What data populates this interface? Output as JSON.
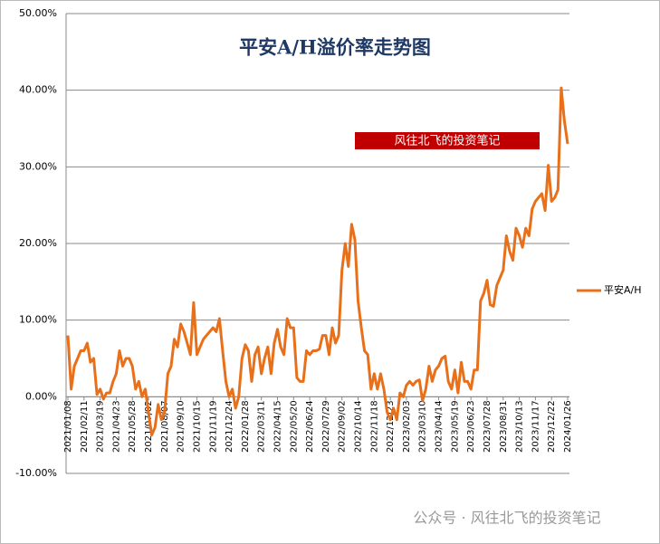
{
  "chart_data": {
    "type": "line",
    "title": "平安A/H溢价率走势图",
    "annotation": "风往北飞的投资笔记",
    "watermark": "公众号 · 风往北飞的投资笔记",
    "categories": [
      "2021/01/08",
      null,
      null,
      null,
      null,
      "2021/02/11",
      null,
      null,
      null,
      null,
      "2021/03/19",
      null,
      null,
      null,
      null,
      "2021/04/23",
      null,
      null,
      null,
      null,
      "2021/05/28",
      null,
      null,
      null,
      null,
      "2021/07/02",
      null,
      null,
      null,
      null,
      "2021/08/07",
      null,
      null,
      null,
      null,
      "2021/09/10",
      null,
      null,
      null,
      null,
      "2021/10/15",
      null,
      null,
      null,
      null,
      "2021/11/19",
      null,
      null,
      null,
      null,
      "2021/12/24",
      null,
      null,
      null,
      null,
      "2022/01/28",
      null,
      null,
      null,
      null,
      "2022/03/11",
      null,
      null,
      null,
      null,
      "2022/04/15",
      null,
      null,
      null,
      null,
      "2022/05/20",
      null,
      null,
      null,
      null,
      "2022/06/24",
      null,
      null,
      null,
      null,
      "2022/07/29",
      null,
      null,
      null,
      null,
      "2022/09/02",
      null,
      null,
      null,
      null,
      "2022/10/14",
      null,
      null,
      null,
      null,
      "2022/11/18",
      null,
      null,
      null,
      null,
      "2022/12/23",
      null,
      null,
      null,
      null,
      "2023/02/03",
      null,
      null,
      null,
      null,
      "2023/03/10",
      null,
      null,
      null,
      null,
      "2023/04/14",
      null,
      null,
      null,
      null,
      "2023/05/19",
      null,
      null,
      null,
      null,
      "2023/06/23",
      null,
      null,
      null,
      null,
      "2023/07/28",
      null,
      null,
      null,
      null,
      "2023/08/31",
      null,
      null,
      null,
      null,
      "2023/10/13",
      null,
      null,
      null,
      null,
      "2023/11/17",
      null,
      null,
      null,
      null,
      "2023/12/22",
      null,
      null,
      null,
      null,
      "2024/01/26"
    ],
    "series": [
      {
        "name": "平安A/H",
        "color": "#e8701a",
        "values": [
          8,
          1,
          4,
          5,
          6,
          6,
          7,
          4.5,
          5,
          0.3,
          1,
          -0.3,
          0.5,
          0.5,
          2,
          3,
          6,
          4,
          5,
          5,
          4,
          1,
          2,
          0,
          1,
          -2,
          -5,
          -4,
          -1,
          -3,
          -2,
          3,
          4,
          7.5,
          6.5,
          9.5,
          8.5,
          7,
          5.5,
          12.3,
          5.5,
          6.5,
          7.5,
          8,
          8.5,
          9,
          8.5,
          10.2,
          6,
          2,
          0,
          1,
          -1.5,
          0,
          5,
          6.8,
          6,
          2,
          5.5,
          6.5,
          3,
          5,
          6.5,
          3,
          7,
          8.8,
          6.5,
          5.5,
          10.2,
          9,
          9,
          2.5,
          2,
          2,
          6,
          5.5,
          6,
          6,
          6.2,
          8,
          8,
          5.5,
          9,
          7,
          8,
          16.5,
          20,
          17,
          22.5,
          20.5,
          12.5,
          9,
          6,
          5.5,
          1,
          3,
          1,
          3,
          1,
          -2,
          -3,
          -1.5,
          -3,
          0.5,
          0,
          1.5,
          2,
          1.5,
          2,
          2.2,
          -0.5,
          1,
          4,
          2,
          3.5,
          4,
          5,
          5.3,
          2,
          1,
          3.5,
          0.5,
          4.5,
          2,
          2,
          1,
          3.5,
          3.5,
          12.5,
          13.5,
          15.2,
          12,
          11.8,
          14.5,
          15.5,
          16.5,
          21,
          19,
          17.8,
          22,
          21,
          19.5,
          22,
          21,
          24.5,
          25.5,
          26,
          26.5,
          24.3,
          30.2,
          25.5,
          26,
          27,
          40.3,
          36,
          33
        ]
      }
    ],
    "ylim": [
      -10,
      50
    ],
    "yticks": [
      {
        "value": -10,
        "label": "-10.00%"
      },
      {
        "value": 0,
        "label": "0.00%"
      },
      {
        "value": 10,
        "label": "10.00%"
      },
      {
        "value": 20,
        "label": "20.00%"
      },
      {
        "value": 30,
        "label": "30.00%"
      },
      {
        "value": 40,
        "label": "40.00%"
      },
      {
        "value": 50,
        "label": "50.00%"
      }
    ],
    "grid": true,
    "legend": "right"
  }
}
